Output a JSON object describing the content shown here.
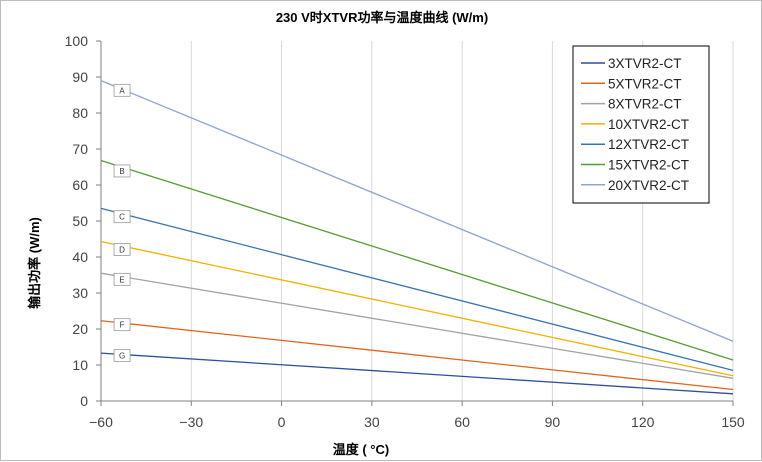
{
  "chart_data": {
    "type": "line",
    "title": "230 V时XTVR功率与温度曲线 (W/m)",
    "xlabel": "温度 ( °C)",
    "ylabel": "输出功率 (W/m)",
    "xlim": [
      -60,
      150
    ],
    "ylim": [
      0,
      100
    ],
    "x_ticks": [
      "−60",
      "−30",
      "0",
      "30",
      "60",
      "90",
      "120",
      "150"
    ],
    "y_ticks": [
      "0",
      "10",
      "20",
      "30",
      "40",
      "50",
      "60",
      "70",
      "80",
      "90",
      "100"
    ],
    "grid": "vertical",
    "legend_position": "top-right",
    "series": [
      {
        "name": "3XTVR2-CT",
        "color": "#2e4f9c",
        "x": [
          -60,
          150
        ],
        "y": [
          13.3,
          2.0
        ]
      },
      {
        "name": "5XTVR2-CT",
        "color": "#e0661f",
        "x": [
          -60,
          150
        ],
        "y": [
          22.3,
          3.2
        ]
      },
      {
        "name": "8XTVR2-CT",
        "color": "#a3a3a3",
        "x": [
          -60,
          150
        ],
        "y": [
          35.5,
          6.3
        ]
      },
      {
        "name": "10XTVR2-CT",
        "color": "#f2b000",
        "x": [
          -60,
          150
        ],
        "y": [
          44.3,
          7.0
        ]
      },
      {
        "name": "12XTVR2-CT",
        "color": "#3a72b4",
        "x": [
          -60,
          150
        ],
        "y": [
          53.5,
          8.5
        ]
      },
      {
        "name": "15XTVR2-CT",
        "color": "#5a9a32",
        "x": [
          -60,
          150
        ],
        "y": [
          66.8,
          11.4
        ]
      },
      {
        "name": "20XTVR2-CT",
        "color": "#8ea4cf",
        "x": [
          -60,
          150
        ],
        "y": [
          89.0,
          16.6
        ]
      }
    ],
    "annotations": [
      {
        "text": "A",
        "x": -53,
        "y": 86.3
      },
      {
        "text": "B",
        "x": -53,
        "y": 63.9
      },
      {
        "text": "C",
        "x": -53,
        "y": 51.2
      },
      {
        "text": "D",
        "x": -53,
        "y": 42.1
      },
      {
        "text": "E",
        "x": -53,
        "y": 33.8
      },
      {
        "text": "F",
        "x": -53,
        "y": 21.2
      },
      {
        "text": "G",
        "x": -53,
        "y": 12.6
      }
    ]
  }
}
